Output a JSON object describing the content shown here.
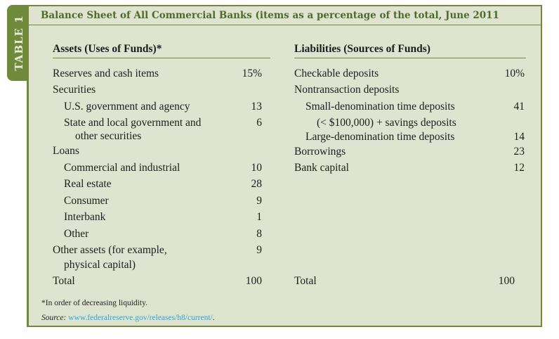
{
  "tab_label": "TABLE 1",
  "title": "Balance Sheet of All Commercial Banks (items as a percentage of the total, June 2011",
  "assets": {
    "header": "Assets (Uses of Funds)*",
    "rows": [
      {
        "label": "Reserves and cash items",
        "value": "15%",
        "indent": 0
      },
      {
        "label": "Securities",
        "value": "",
        "indent": 0
      },
      {
        "label": "U.S. government and agency",
        "value": "13",
        "indent": 1
      },
      {
        "label": "State and local government and",
        "value": "6",
        "indent": 1
      },
      {
        "label": "other securities",
        "value": "",
        "indent": 2
      },
      {
        "label": "Loans",
        "value": "",
        "indent": 0
      },
      {
        "label": "Commercial and industrial",
        "value": "10",
        "indent": 1
      },
      {
        "label": "Real estate",
        "value": "28",
        "indent": 1
      },
      {
        "label": "Consumer",
        "value": "9",
        "indent": 1
      },
      {
        "label": "Interbank",
        "value": "1",
        "indent": 1
      },
      {
        "label": "Other",
        "value": "8",
        "indent": 1
      },
      {
        "label": "Other assets (for example,",
        "value": "9",
        "indent": 0
      },
      {
        "label": "physical capital)",
        "value": "",
        "indent": 3
      }
    ],
    "total_label": "Total",
    "total_value": "100"
  },
  "liabilities": {
    "header": "Liabilities (Sources of Funds)",
    "rows": [
      {
        "label": "Checkable deposits",
        "value": "10%",
        "indent": 0
      },
      {
        "label": "Nontransaction deposits",
        "value": "",
        "indent": 0
      },
      {
        "label": "Small-denomination time deposits",
        "value": "41",
        "indent": 1
      },
      {
        "label": "(< $100,000) + savings deposits",
        "value": "",
        "indent": 2
      },
      {
        "label": "Large-denomination time deposits",
        "value": "14",
        "indent": 1
      },
      {
        "label": "Borrowings",
        "value": "23",
        "indent": 0
      },
      {
        "label": "Bank capital",
        "value": "12",
        "indent": 0
      }
    ],
    "total_label": "Total",
    "total_value": "100"
  },
  "footnote": "*In order of decreasing liquidity.",
  "source_label": "Source:",
  "source_link": "www.federalreserve.gov/releases/h8/current/",
  "source_end": "."
}
